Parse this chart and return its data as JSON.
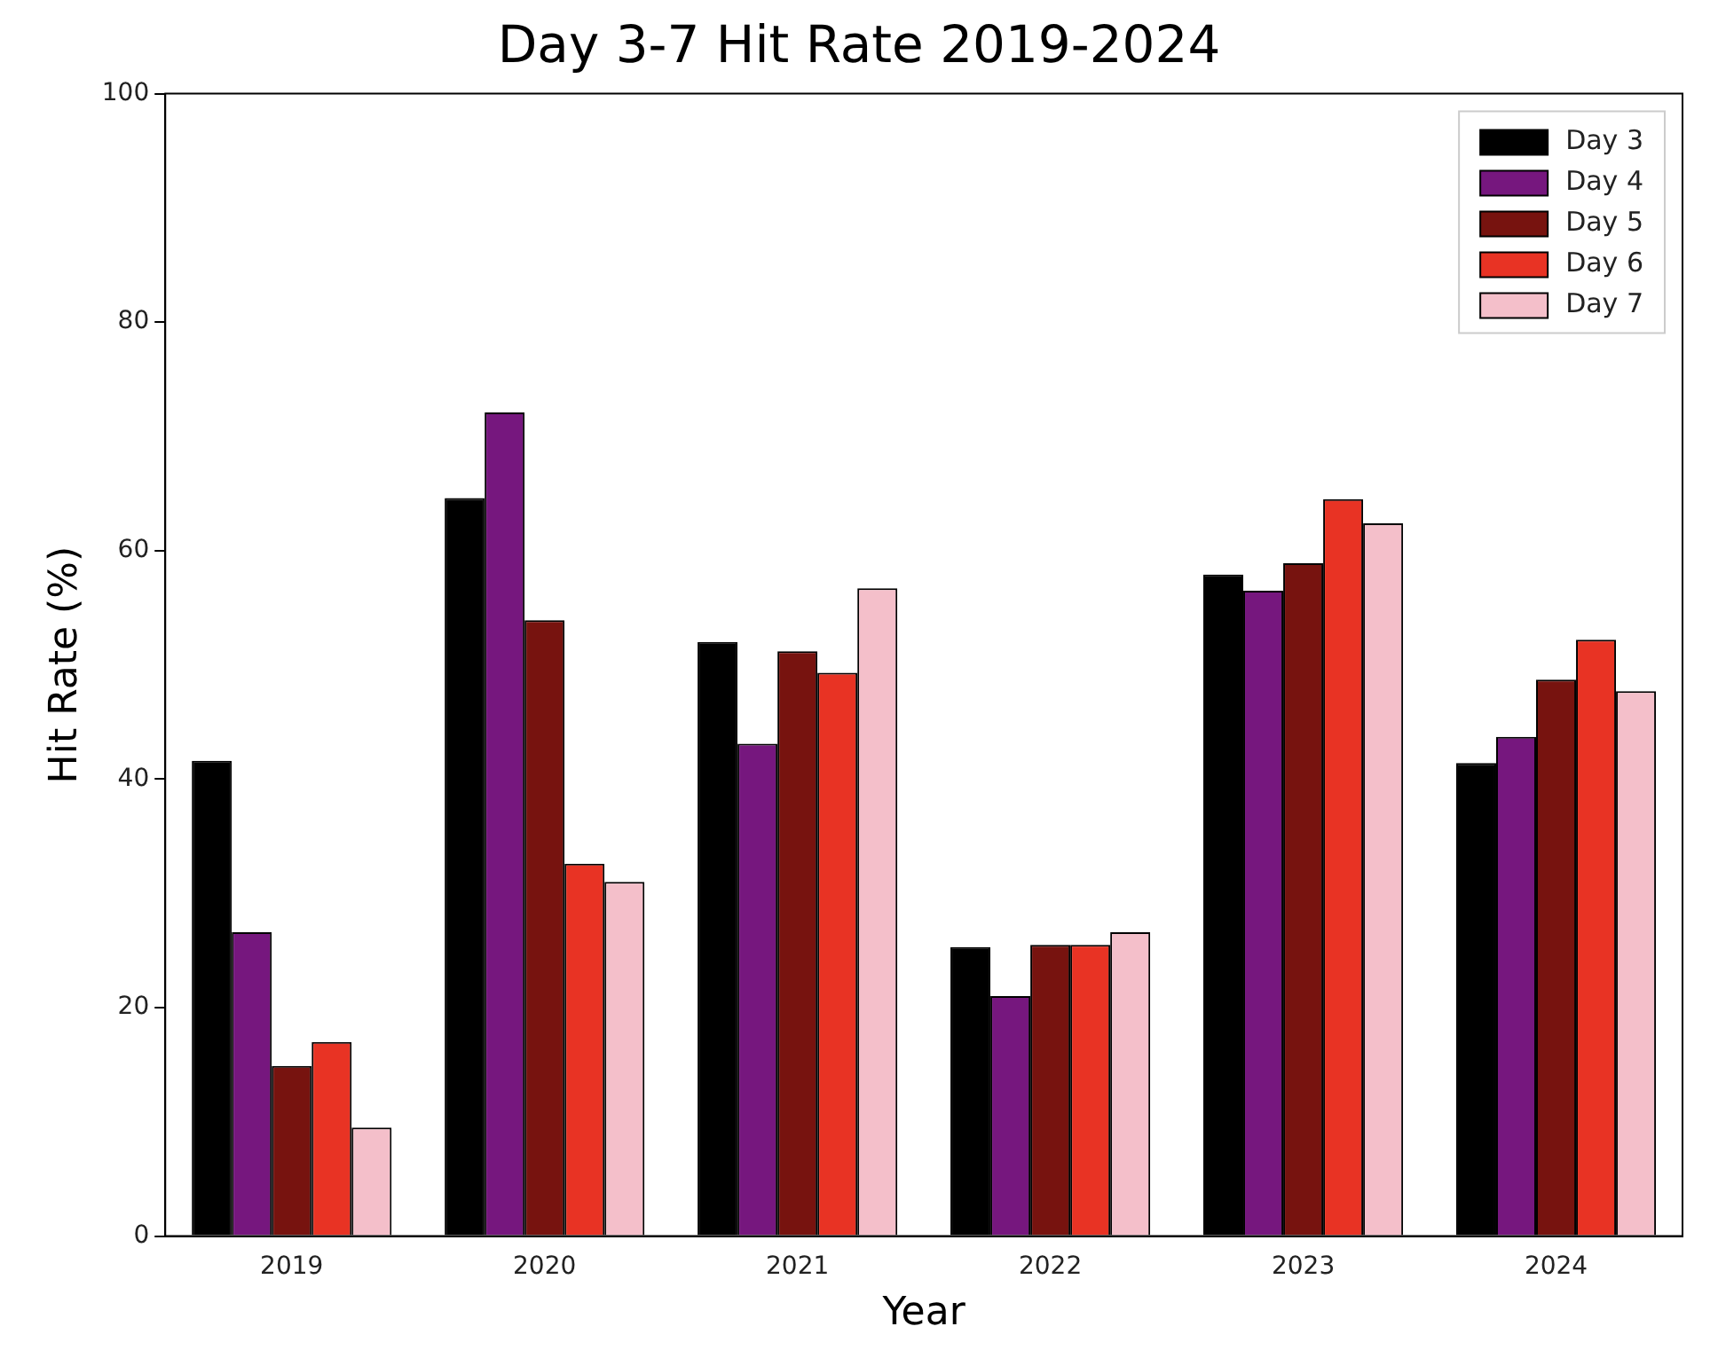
{
  "chart_data": {
    "type": "bar",
    "title": "Day 3-7 Hit Rate 2019-2024",
    "xlabel": "Year",
    "ylabel": "Hit Rate (%)",
    "categories": [
      "2019",
      "2020",
      "2021",
      "2022",
      "2023",
      "2024"
    ],
    "series": [
      {
        "name": "Day 3",
        "color": "#000000",
        "values": [
          41.6,
          64.6,
          52.0,
          25.3,
          57.9,
          41.4
        ]
      },
      {
        "name": "Day 4",
        "color": "#76177e",
        "values": [
          26.6,
          72.1,
          43.1,
          21.0,
          56.5,
          43.7
        ]
      },
      {
        "name": "Day 5",
        "color": "#77130f",
        "values": [
          14.9,
          53.9,
          51.2,
          25.5,
          58.9,
          48.7
        ]
      },
      {
        "name": "Day 6",
        "color": "#e83324",
        "values": [
          17.0,
          32.6,
          49.3,
          25.5,
          64.5,
          52.2
        ]
      },
      {
        "name": "Day 7",
        "color": "#f4bfca",
        "values": [
          9.5,
          31.0,
          56.7,
          26.6,
          62.4,
          47.7
        ]
      }
    ],
    "ylim": [
      0,
      100
    ],
    "yticks": [
      0,
      20,
      40,
      60,
      80,
      100
    ],
    "grid": false,
    "legend": "top right"
  }
}
